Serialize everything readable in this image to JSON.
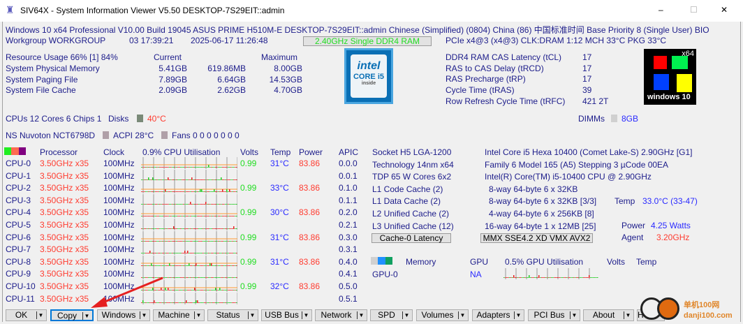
{
  "window": {
    "title": "SIV64X - System Information Viewer V5.50 DESKTOP-7S29EIT::admin",
    "minimize": "–",
    "maximize": "☐",
    "close": "✕"
  },
  "header": {
    "line1": "Windows 10 x64 Professional  V10.00  Build 19045    ASUS PRIME H510M-E  DESKTOP-7S29EIT::admin  Chinese (Simplified) (0804)  China (86)  中国标准时间  Base Priority 8 (Single User)  BIO",
    "workgroup": "Workgroup WORKGROUP",
    "uptime": "03 17:39:21",
    "datetime": "2025-06-17 11:26:48",
    "memory_box": "2.40GHz Single DDR4 RAM",
    "pcie": "PCIe x4@3 (x4@3) CLK:DRAM 1:12  MCH 33°C  PKG 33°C"
  },
  "resources": {
    "title": "Resource Usage 66% [1] 84%",
    "current_label": "Current",
    "maximum_label": "Maximum",
    "rows": [
      {
        "label": "System Physical Memory",
        "current": "5.41GB",
        "free": "619.86MB",
        "max": "8.00GB"
      },
      {
        "label": "System Paging File",
        "current": "7.89GB",
        "free": "6.64GB",
        "max": "14.53GB"
      },
      {
        "label": "System File Cache",
        "current": "2.09GB",
        "free": "2.62GB",
        "max": "4.70GB"
      }
    ]
  },
  "logos": {
    "intel": "intel CORE i5 inside",
    "windows": "windows 10",
    "windows_arch": "x64"
  },
  "ram_timings": [
    {
      "label": "DDR4 RAM CAS Latency (tCL)",
      "value": "17"
    },
    {
      "label": "RAS to CAS Delay (tRCD)",
      "value": "17"
    },
    {
      "label": "RAS Precharge (tRP)",
      "value": "17"
    },
    {
      "label": "Cycle Time (tRAS)",
      "value": "39"
    },
    {
      "label": "Row Refresh Cycle Time (tRFC)",
      "value": "421 2T"
    }
  ],
  "summary": {
    "cpus": "CPUs 12 Cores 6 Chips 1",
    "disks": "Disks",
    "disk_temp": "40°C",
    "dimms": "DIMMs",
    "dimm_size": "8GB",
    "sensor": "NS Nuvoton NCT6798D",
    "acpi": "ACPI 28°C",
    "fans": "Fans 0 0 0 0 0 0 0"
  },
  "cpu_table": {
    "headers": {
      "processor": "Processor",
      "clock": "Clock",
      "util": "0.9% CPU Utilisation",
      "volts": "Volts",
      "temp": "Temp",
      "power": "Power",
      "apic": "APIC"
    },
    "rows": [
      {
        "name": "CPU-0",
        "proc": "3.50GHz x35",
        "clock": "100MHz",
        "volts": "0.99",
        "temp": "31°C",
        "power": "83.86",
        "apic": "0.0.0"
      },
      {
        "name": "CPU-1",
        "proc": "3.50GHz x35",
        "clock": "100MHz",
        "apic": "0.0.1"
      },
      {
        "name": "CPU-2",
        "proc": "3.50GHz x35",
        "clock": "100MHz",
        "volts": "0.99",
        "temp": "33°C",
        "power": "83.86",
        "apic": "0.1.0"
      },
      {
        "name": "CPU-3",
        "proc": "3.50GHz x35",
        "clock": "100MHz",
        "apic": "0.1.1"
      },
      {
        "name": "CPU-4",
        "proc": "3.50GHz x35",
        "clock": "100MHz",
        "volts": "0.99",
        "temp": "30°C",
        "power": "83.86",
        "apic": "0.2.0"
      },
      {
        "name": "CPU-5",
        "proc": "3.50GHz x35",
        "clock": "100MHz",
        "apic": "0.2.1"
      },
      {
        "name": "CPU-6",
        "proc": "3.50GHz x35",
        "clock": "100MHz",
        "volts": "0.99",
        "temp": "31°C",
        "power": "83.86",
        "apic": "0.3.0"
      },
      {
        "name": "CPU-7",
        "proc": "3.50GHz x35",
        "clock": "100MHz",
        "apic": "0.3.1"
      },
      {
        "name": "CPU-8",
        "proc": "3.50GHz x35",
        "clock": "100MHz",
        "volts": "0.99",
        "temp": "31°C",
        "power": "83.86",
        "apic": "0.4.0"
      },
      {
        "name": "CPU-9",
        "proc": "3.50GHz x35",
        "clock": "100MHz",
        "apic": "0.4.1"
      },
      {
        "name": "CPU-10",
        "proc": "3.50GHz x35",
        "clock": "100MHz",
        "volts": "0.99",
        "temp": "32°C",
        "power": "83.86",
        "apic": "0.5.0"
      },
      {
        "name": "CPU-11",
        "proc": "3.50GHz x35",
        "clock": "100MHz",
        "apic": "0.5.1"
      }
    ]
  },
  "cpu_info": {
    "left": [
      "Socket H5 LGA-1200",
      "Technology 14nm  x64",
      "TDP 65 W Cores 6x2",
      "L1 Code Cache (2)",
      "L1 Data Cache (2)",
      "L2 Unified Cache (2)",
      "L3 Unified Cache (12)"
    ],
    "right": [
      "Intel Core i5 Hexa 10400 (Comet Lake-S) 2.90GHz [G1]",
      "Family 6  Model 165 (A5)  Stepping 3  µCode 00EA",
      "Intel(R) Core(TM) i5-10400 CPU @ 2.90GHz",
      "8-way 64-byte  6 x 32KB",
      "8-way 64-byte  6 x 32KB [3/3]",
      "4-way 64-byte  6 x 256KB [8]",
      "16-way 64-byte  1 x 12MB [25]"
    ],
    "temp_label": "Temp",
    "temp_value": "33.0°C (33-47)",
    "power_label": "Power",
    "power_value": "4.25 Watts",
    "agent_label": "Agent",
    "agent_value": "3.20GHz",
    "cache_latency_button": "Cache-0 Latency",
    "features_box": "MMX SSE4.2 XD VMX AVX2"
  },
  "gpu_table": {
    "headers": {
      "memory": "Memory",
      "gpu": "GPU",
      "util": "0.5% GPU Utilisation",
      "volts": "Volts",
      "temp": "Temp"
    },
    "rows": [
      {
        "name": "GPU-0",
        "gpu": "NA"
      }
    ]
  },
  "buttons": [
    "OK",
    "Copy",
    "Windows",
    "Machine",
    "Status",
    "USB Bus",
    "Network",
    "SPD",
    "Volumes",
    "Adapters",
    "PCI Bus",
    "About",
    "Help"
  ],
  "watermark": "单机100网 danji100.com",
  "colors": {
    "text": "#1c1c8a",
    "red": "#ff3b2f",
    "green": "#22dd22",
    "blue": "#2a2aff",
    "selected_button": "#0078d7"
  }
}
